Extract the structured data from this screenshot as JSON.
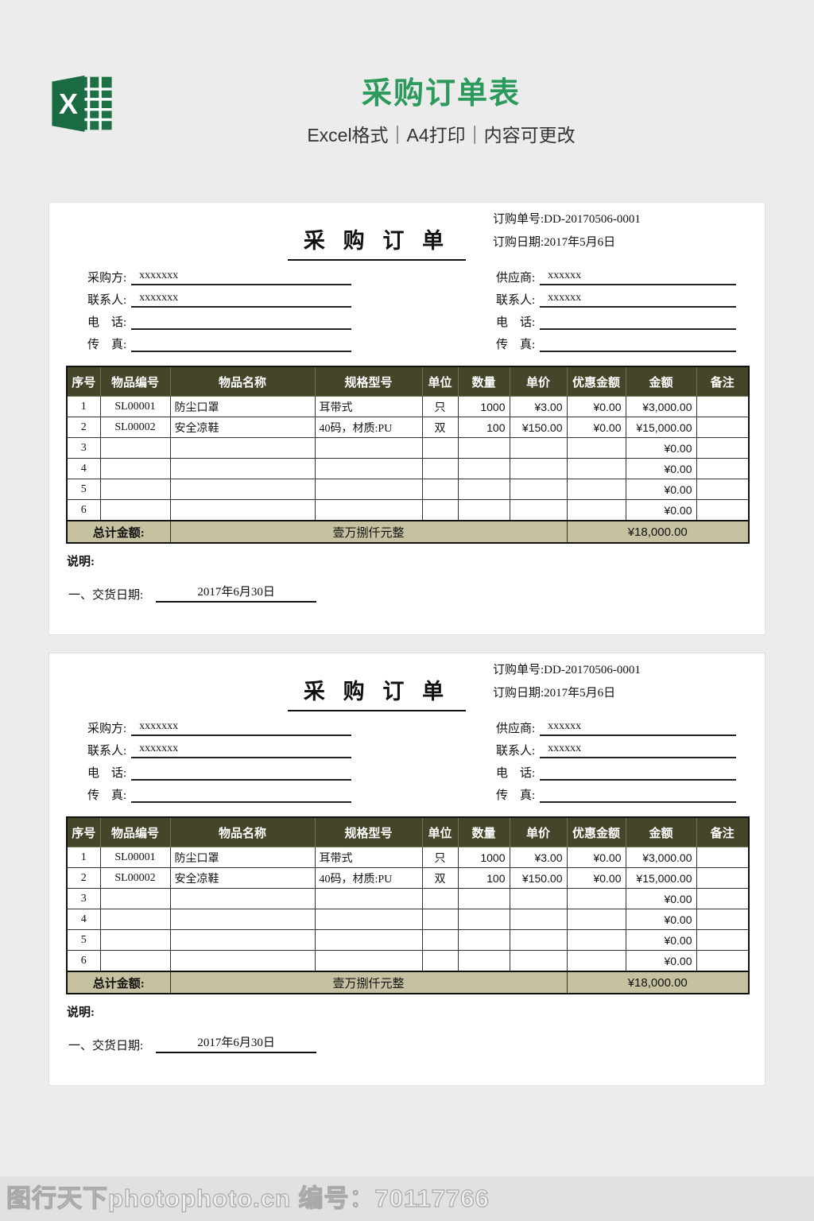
{
  "page": {
    "title": "采购订单表",
    "subtitle": "Excel格式｜A4打印｜内容可更改",
    "watermark": "图行天下photophoto.cn 编号：70117766"
  },
  "colors": {
    "brand_green": "#2c9a5d",
    "excel_icon_green": "#1e7145",
    "table_header_bg": "#45452a",
    "total_row_bg": "#c6c1a0",
    "page_bg": "#ececec"
  },
  "doc": {
    "title": "采 购 订 单",
    "order_no_label": "订购单号:",
    "order_no": "DD-20170506-0001",
    "order_date_label": "订购日期:",
    "order_date": "2017年5月6日",
    "info_left": [
      {
        "label": "采购方:",
        "value": "xxxxxxx"
      },
      {
        "label": "联系人:",
        "value": "xxxxxxx"
      },
      {
        "label": "电　话:",
        "value": ""
      },
      {
        "label": "传　真:",
        "value": ""
      }
    ],
    "info_right": [
      {
        "label": "供应商:",
        "value": "xxxxxx"
      },
      {
        "label": "联系人:",
        "value": "xxxxxx"
      },
      {
        "label": "电　话:",
        "value": ""
      },
      {
        "label": "传　真:",
        "value": ""
      }
    ],
    "table": {
      "headers": [
        "序号",
        "物品编号",
        "物品名称",
        "规格型号",
        "单位",
        "数量",
        "单价",
        "优惠金额",
        "金额",
        "备注"
      ],
      "rows": [
        [
          "1",
          "SL00001",
          "防尘口罩",
          "耳带式",
          "只",
          "1000",
          "¥3.00",
          "¥0.00",
          "¥3,000.00",
          ""
        ],
        [
          "2",
          "SL00002",
          "安全凉鞋",
          "40码，材质:PU",
          "双",
          "100",
          "¥150.00",
          "¥0.00",
          "¥15,000.00",
          ""
        ],
        [
          "3",
          "",
          "",
          "",
          "",
          "",
          "",
          "",
          "¥0.00",
          ""
        ],
        [
          "4",
          "",
          "",
          "",
          "",
          "",
          "",
          "",
          "¥0.00",
          ""
        ],
        [
          "5",
          "",
          "",
          "",
          "",
          "",
          "",
          "",
          "¥0.00",
          ""
        ],
        [
          "6",
          "",
          "",
          "",
          "",
          "",
          "",
          "",
          "¥0.00",
          ""
        ]
      ],
      "total_label": "总计金额:",
      "total_cn": "壹万捌仟元整",
      "total_amount": "¥18,000.00"
    },
    "notes_label": "说明:",
    "delivery_prefix": "一、交货日期:",
    "delivery_date": "2017年6月30日"
  }
}
